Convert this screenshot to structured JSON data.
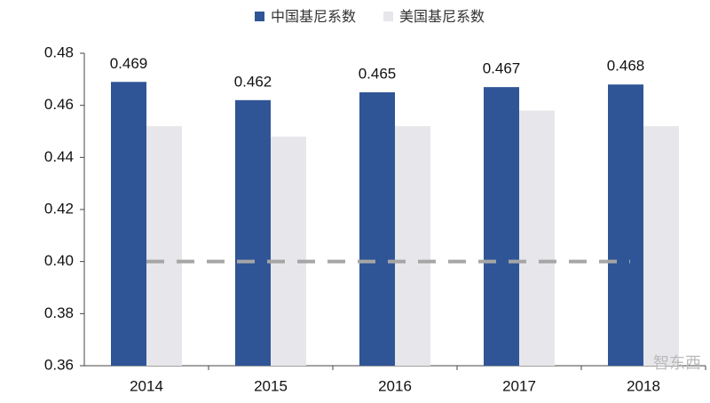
{
  "chart_data": {
    "type": "bar",
    "categories": [
      "2014",
      "2015",
      "2016",
      "2017",
      "2018"
    ],
    "series": [
      {
        "name": "中国基尼系数",
        "color": "#2f5597",
        "values": [
          0.469,
          0.462,
          0.465,
          0.467,
          0.468
        ]
      },
      {
        "name": "美国基尼系数",
        "color": "#e7e6ea",
        "values": [
          0.452,
          0.448,
          0.452,
          0.458,
          0.452
        ]
      }
    ],
    "data_labels_series": 0,
    "ylim": [
      0.36,
      0.48
    ],
    "yticks": [
      0.36,
      0.38,
      {
        "value": 0.4,
        "label": "0.40"
      },
      0.42,
      0.44,
      0.46,
      0.48
    ],
    "reference_line": {
      "value": 0.4,
      "color": "#a6a6a6"
    },
    "legend": "top",
    "watermark": "智东西"
  }
}
